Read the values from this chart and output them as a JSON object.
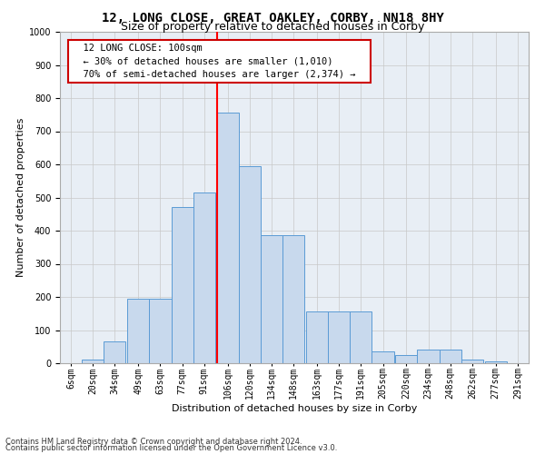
{
  "title": "12, LONG CLOSE, GREAT OAKLEY, CORBY, NN18 8HY",
  "subtitle": "Size of property relative to detached houses in Corby",
  "xlabel": "Distribution of detached houses by size in Corby",
  "ylabel": "Number of detached properties",
  "footer1": "Contains HM Land Registry data © Crown copyright and database right 2024.",
  "footer2": "Contains public sector information licensed under the Open Government Licence v3.0.",
  "annotation_title": "12 LONG CLOSE: 100sqm",
  "annotation_line1": "← 30% of detached houses are smaller (1,010)",
  "annotation_line2": "70% of semi-detached houses are larger (2,374) →",
  "bar_color": "#c8d9ed",
  "bar_edge_color": "#5b9bd5",
  "vline_color": "red",
  "vline_x": 106,
  "categories": [
    "6sqm",
    "20sqm",
    "34sqm",
    "49sqm",
    "63sqm",
    "77sqm",
    "91sqm",
    "106sqm",
    "120sqm",
    "134sqm",
    "148sqm",
    "163sqm",
    "177sqm",
    "191sqm",
    "205sqm",
    "220sqm",
    "234sqm",
    "248sqm",
    "262sqm",
    "277sqm",
    "291sqm"
  ],
  "bin_starts": [
    6,
    20,
    34,
    49,
    63,
    77,
    91,
    106,
    120,
    134,
    148,
    163,
    177,
    191,
    205,
    220,
    234,
    248,
    262,
    277,
    291
  ],
  "bin_width": 14,
  "values": [
    0,
    10,
    65,
    195,
    195,
    470,
    515,
    755,
    595,
    385,
    385,
    155,
    155,
    155,
    35,
    25,
    40,
    40,
    10,
    5,
    0
  ],
  "ylim": [
    0,
    1000
  ],
  "yticks": [
    0,
    100,
    200,
    300,
    400,
    500,
    600,
    700,
    800,
    900,
    1000
  ],
  "bg_color": "#ffffff",
  "plot_bg_color": "#e8eef5",
  "grid_color": "#c8c8c8",
  "box_edge_color": "#cc0000",
  "title_fontsize": 10,
  "subtitle_fontsize": 9,
  "xlabel_fontsize": 8,
  "ylabel_fontsize": 8,
  "tick_fontsize": 7,
  "annot_fontsize": 7.5,
  "footer_fontsize": 6
}
